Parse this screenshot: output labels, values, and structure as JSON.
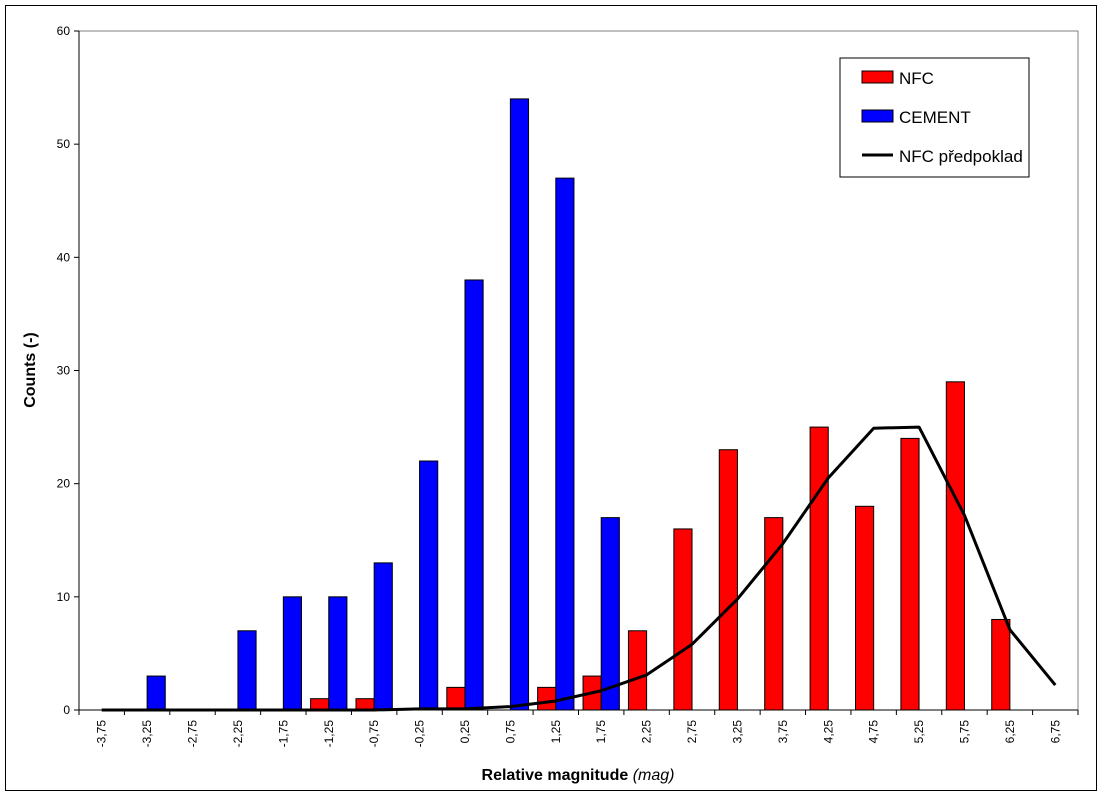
{
  "chart_data": {
    "type": "bar",
    "xlabel": "Relative magnitude",
    "xlabel_unit": "(mag)",
    "ylabel": "Counts (-)",
    "ylim": [
      0,
      60
    ],
    "yticks": [
      "0",
      "10",
      "20",
      "30",
      "40",
      "50",
      "60"
    ],
    "categories": [
      "-3,75",
      "-3,25",
      "-2,75",
      "-2,25",
      "-1,75",
      "-1,25",
      "-0,75",
      "-0,25",
      "0,25",
      "0,75",
      "1,25",
      "1,75",
      "2,25",
      "2,75",
      "3,25",
      "3,75",
      "4,25",
      "4,75",
      "5,25",
      "5,75",
      "6,25",
      "6,75"
    ],
    "grid": false,
    "legend_position": "top-right",
    "series": [
      {
        "name": "NFC",
        "kind": "bar",
        "color": "#ff0000",
        "values": [
          0,
          0,
          0,
          0,
          0,
          1,
          1,
          0,
          2,
          0,
          2,
          3,
          7,
          16,
          23,
          17,
          25,
          18,
          24,
          29,
          8,
          0
        ]
      },
      {
        "name": "CEMENT",
        "kind": "bar",
        "color": "#0000ff",
        "values": [
          0,
          3,
          0,
          7,
          10,
          10,
          13,
          22,
          38,
          54,
          47,
          17,
          0,
          0,
          0,
          0,
          0,
          0,
          0,
          0,
          0,
          0
        ]
      },
      {
        "name": "NFC předpoklad",
        "kind": "line",
        "color": "#000000",
        "values": [
          0,
          0,
          0,
          0,
          0,
          0,
          0,
          0.1,
          0.1,
          0.3,
          0.8,
          1.7,
          3.1,
          5.8,
          9.8,
          14.7,
          20.5,
          24.9,
          25.0,
          17.2,
          7.1,
          2.2
        ]
      }
    ]
  }
}
